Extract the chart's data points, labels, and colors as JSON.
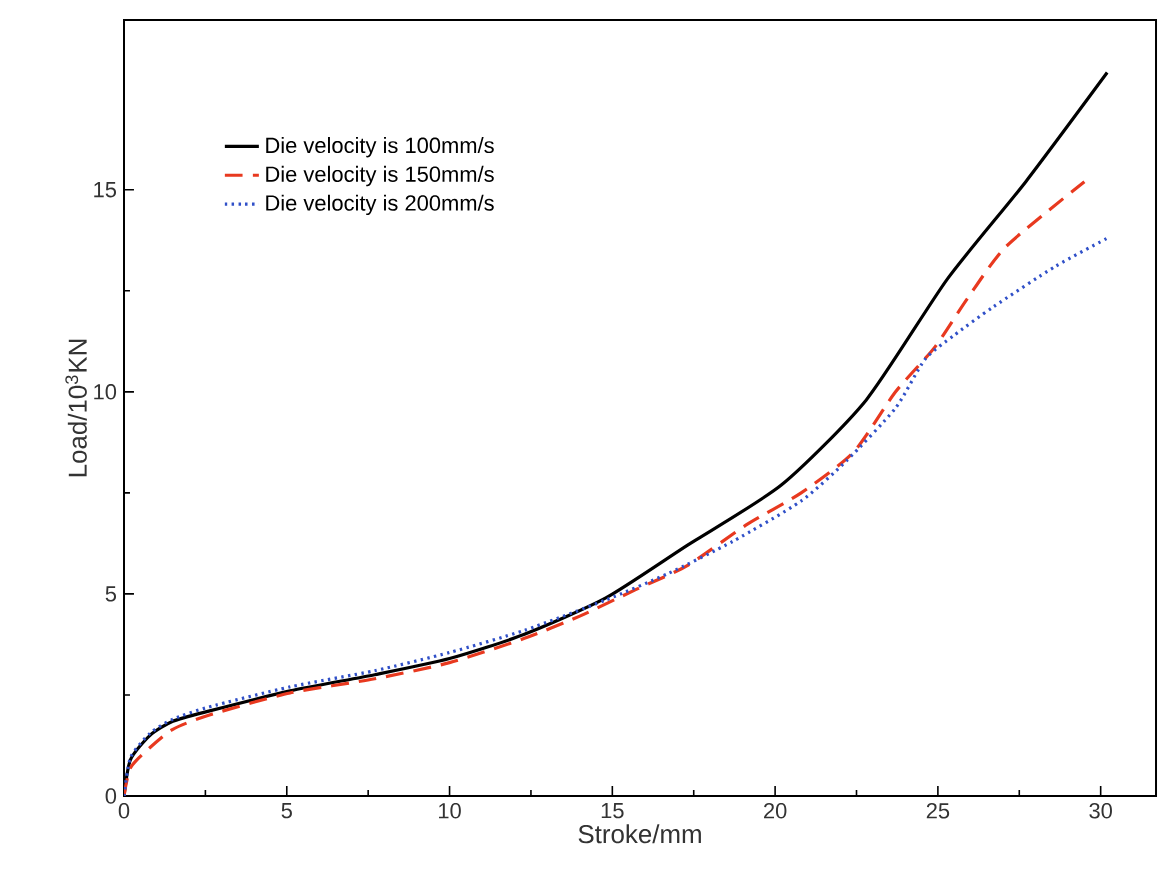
{
  "chart_data": {
    "type": "line",
    "xlabel": "Stroke/mm",
    "ylabel": "Load/10$^{3}$KN",
    "xlim": [
      0,
      31.7
    ],
    "ylim": [
      0,
      19.2
    ],
    "xticks": [
      0,
      5,
      10,
      15,
      20,
      25,
      30
    ],
    "yticks": [
      0,
      5,
      10,
      15
    ],
    "legend": "top left",
    "grid": false,
    "marker": "none",
    "series": [
      {
        "name": "Die velocity is 100mm/s",
        "color": "#000000",
        "line_style": "solid",
        "x": [
          0,
          0.2,
          0.8,
          1.5,
          2.6,
          5.1,
          7.7,
          10,
          12.3,
          14.8,
          17.3,
          20.2,
          22.8,
          25.3,
          27.7,
          30.2
        ],
        "values": [
          0,
          0.9,
          1.5,
          1.85,
          2.1,
          2.6,
          3.0,
          3.4,
          4.0,
          4.9,
          6.2,
          7.7,
          9.8,
          12.8,
          15.2,
          17.9
        ]
      },
      {
        "name": "Die velocity is 150mm/s",
        "color": "#e8391f",
        "line_style": "dashed",
        "x": [
          0,
          0.2,
          0.8,
          1.5,
          2.6,
          5.1,
          7.7,
          10,
          12.3,
          14,
          15.7,
          17.3,
          19.1,
          20.8,
          22.4,
          23.7,
          24.9,
          25.9,
          27.1,
          29.5
        ],
        "values": [
          0,
          0.7,
          1.2,
          1.65,
          2.0,
          2.55,
          2.9,
          3.3,
          3.9,
          4.45,
          5.1,
          5.7,
          6.7,
          7.5,
          8.5,
          10.0,
          11.1,
          12.3,
          13.6,
          15.2
        ]
      },
      {
        "name": "Die velocity is 200mm/s",
        "color": "#3050c8",
        "line_style": "dotted",
        "x": [
          0,
          0.2,
          0.8,
          1.5,
          2.6,
          5.1,
          7.7,
          10,
          12.3,
          14.8,
          16.7,
          18.7,
          20.8,
          22.2,
          23.7,
          24.6,
          25.5,
          26.7,
          28.6,
          30.2
        ],
        "values": [
          0,
          0.95,
          1.55,
          1.9,
          2.2,
          2.7,
          3.1,
          3.55,
          4.1,
          4.85,
          5.5,
          6.3,
          7.3,
          8.3,
          9.6,
          10.8,
          11.4,
          12.1,
          13.1,
          13.8
        ]
      }
    ]
  }
}
